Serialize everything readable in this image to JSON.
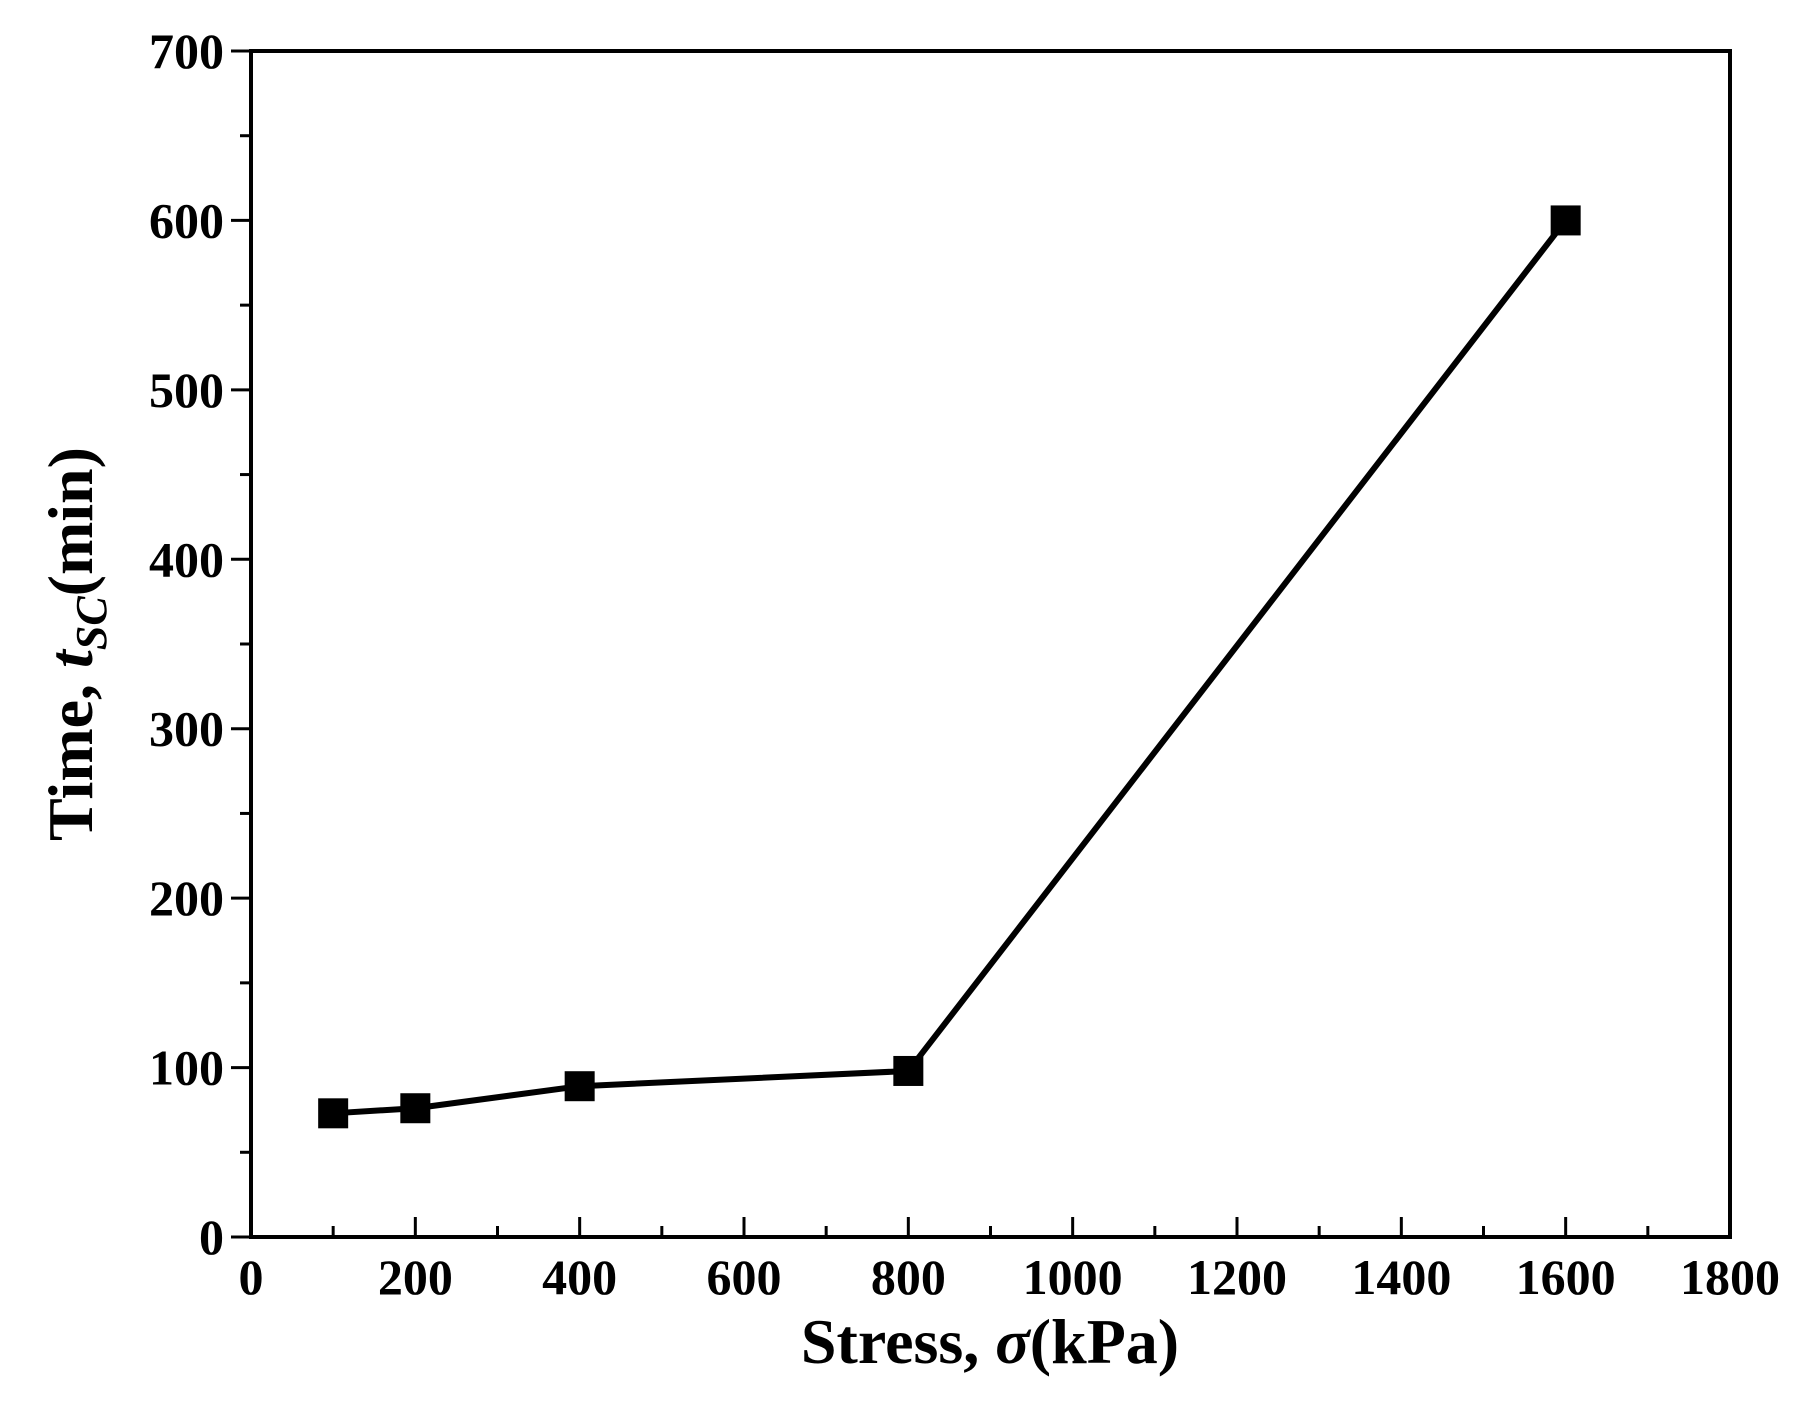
{
  "chart_data": {
    "type": "line",
    "xlabel": {
      "prefix": "Stress, ",
      "symbol": "σ",
      "suffix": "(kPa)"
    },
    "ylabel": {
      "prefix": "Time, ",
      "symbol": "t",
      "subscript": "SC",
      "suffix": "(min)"
    },
    "xlim": [
      0,
      1800
    ],
    "ylim": [
      0,
      700
    ],
    "x_ticks": [
      0,
      200,
      400,
      600,
      800,
      1000,
      1200,
      1400,
      1600,
      1800
    ],
    "y_ticks": [
      0,
      100,
      200,
      300,
      400,
      500,
      600,
      700
    ],
    "x_minor_step": 100,
    "y_minor_step": 50,
    "grid": false,
    "series": [
      {
        "marker": "square",
        "color": "#000000",
        "x": [
          100,
          200,
          400,
          800,
          1600
        ],
        "y": [
          73,
          76,
          89,
          98,
          600
        ]
      }
    ]
  }
}
